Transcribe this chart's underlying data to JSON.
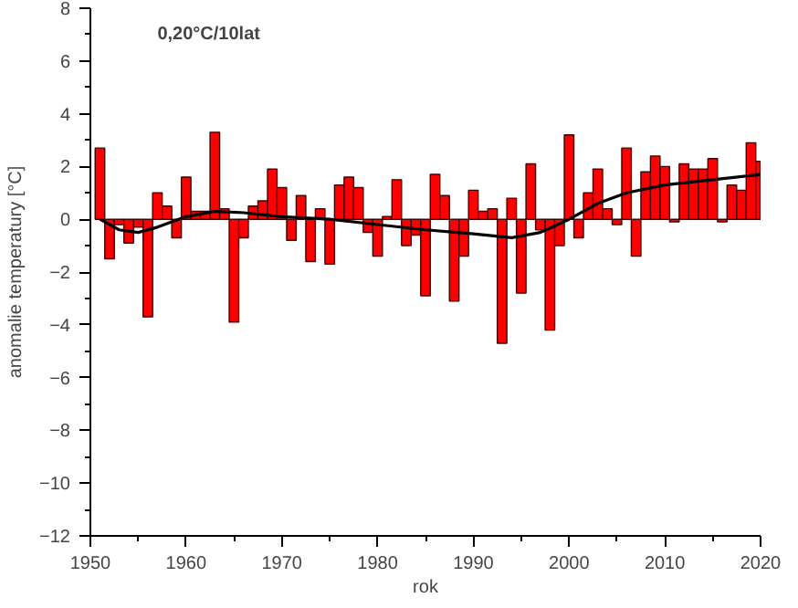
{
  "chart_data": {
    "type": "bar",
    "xlabel": "rok",
    "ylabel": "anomalie temperatury [°C]",
    "annotations": [
      "0,20°C/10lat"
    ],
    "x": [
      1951,
      1952,
      1953,
      1954,
      1955,
      1956,
      1957,
      1958,
      1959,
      1960,
      1961,
      1962,
      1963,
      1964,
      1965,
      1966,
      1967,
      1968,
      1969,
      1970,
      1971,
      1972,
      1973,
      1974,
      1975,
      1976,
      1977,
      1978,
      1979,
      1980,
      1981,
      1982,
      1983,
      1984,
      1985,
      1986,
      1987,
      1988,
      1989,
      1990,
      1991,
      1992,
      1993,
      1994,
      1995,
      1996,
      1997,
      1998,
      1999,
      2000,
      2001,
      2002,
      2003,
      2004,
      2005,
      2006,
      2007,
      2008,
      2009,
      2010,
      2011,
      2012,
      2013,
      2014,
      2015,
      2016,
      2017,
      2018,
      2019,
      2020
    ],
    "series": [
      {
        "color": "#ff0000",
        "values": [
          2.7,
          -1.5,
          -0.2,
          -0.9,
          -0.3,
          -3.7,
          1.0,
          0.5,
          -0.7,
          1.6,
          0.3,
          0.3,
          3.3,
          0.4,
          -3.9,
          -0.7,
          0.5,
          0.7,
          1.9,
          1.2,
          -0.8,
          0.9,
          -1.6,
          0.4,
          -1.7,
          1.3,
          1.6,
          1.2,
          -0.5,
          -1.4,
          0.1,
          1.5,
          -1.0,
          -0.6,
          -2.9,
          1.7,
          0.9,
          -3.1,
          -1.4,
          1.1,
          0.3,
          0.4,
          -4.7,
          0.8,
          -2.8,
          2.1,
          -0.4,
          -4.2,
          -1.0,
          3.2,
          -0.7,
          1.0,
          1.9,
          0.4,
          -0.2,
          2.7,
          -1.4,
          1.8,
          2.4,
          2.0,
          -0.1,
          2.1,
          1.9,
          1.9,
          2.3,
          -0.1,
          1.3,
          1.1,
          2.9,
          2.2
        ]
      },
      {
        "type": "line",
        "color": "#000000",
        "x": [
          1951,
          1953,
          1955,
          1957,
          1960,
          1963,
          1966,
          1970,
          1975,
          1980,
          1985,
          1990,
          1994,
          1997,
          2000,
          2003,
          2006,
          2010,
          2015,
          2020
        ],
        "values": [
          0.0,
          -0.4,
          -0.5,
          -0.3,
          0.1,
          0.3,
          0.25,
          0.1,
          0.0,
          -0.2,
          -0.4,
          -0.55,
          -0.7,
          -0.5,
          0.0,
          0.6,
          1.0,
          1.3,
          1.5,
          1.7
        ]
      }
    ],
    "xlim": [
      1950,
      2020
    ],
    "xticks": [
      1950,
      1960,
      1970,
      1980,
      1990,
      2000,
      2010,
      2020
    ],
    "ylim": [
      -12,
      8
    ],
    "yticks": [
      -12,
      -10,
      -8,
      -6,
      -4,
      -2,
      0,
      2,
      4,
      6,
      8
    ],
    "grid": false
  }
}
